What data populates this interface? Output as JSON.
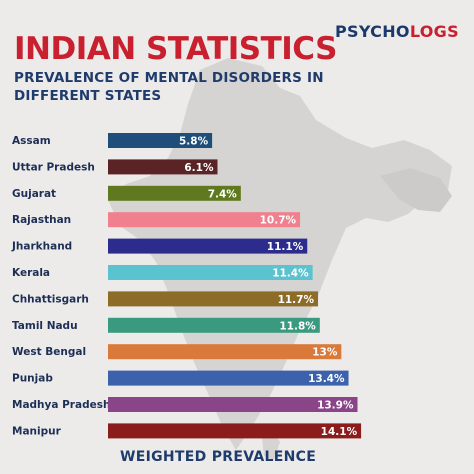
{
  "brand": {
    "part1": "PSYCHO",
    "part2": "LOGS"
  },
  "header": {
    "title": "INDIAN STATISTICS",
    "subtitle": "PREVALENCE OF MENTAL DISORDERS IN DIFFERENT STATES"
  },
  "footer": {
    "label": "WEIGHTED PREVALENCE"
  },
  "chart_data": {
    "type": "bar",
    "orientation": "horizontal",
    "title": "PREVALENCE OF MENTAL DISORDERS IN DIFFERENT STATES",
    "xlabel": "WEIGHTED PREVALENCE",
    "ylabel": "",
    "value_suffix": "%",
    "categories": [
      "Assam",
      "Uttar Pradesh",
      "Gujarat",
      "Rajasthan",
      "Jharkhand",
      "Kerala",
      "Chhattisgarh",
      "Tamil Nadu",
      "West Bengal",
      "Punjab",
      "Madhya Pradesh",
      "Manipur"
    ],
    "values": [
      5.8,
      6.1,
      7.4,
      10.7,
      11.1,
      11.4,
      11.7,
      11.8,
      13,
      13.4,
      13.9,
      14.1
    ],
    "value_labels": [
      "5.8%",
      "6.1%",
      "7.4%",
      "10.7%",
      "11.1%",
      "11.4%",
      "11.7%",
      "11.8%",
      "13%",
      "13.4%",
      "13.9%",
      "14.1%"
    ],
    "colors": [
      "#1e4e79",
      "#5a2426",
      "#5f7a1e",
      "#f0808e",
      "#2c2c8c",
      "#5bc2d0",
      "#8c6c26",
      "#3a9a80",
      "#d9793a",
      "#3c62ac",
      "#8a4488",
      "#8a1c1c"
    ],
    "grid": false,
    "legend": "none"
  }
}
